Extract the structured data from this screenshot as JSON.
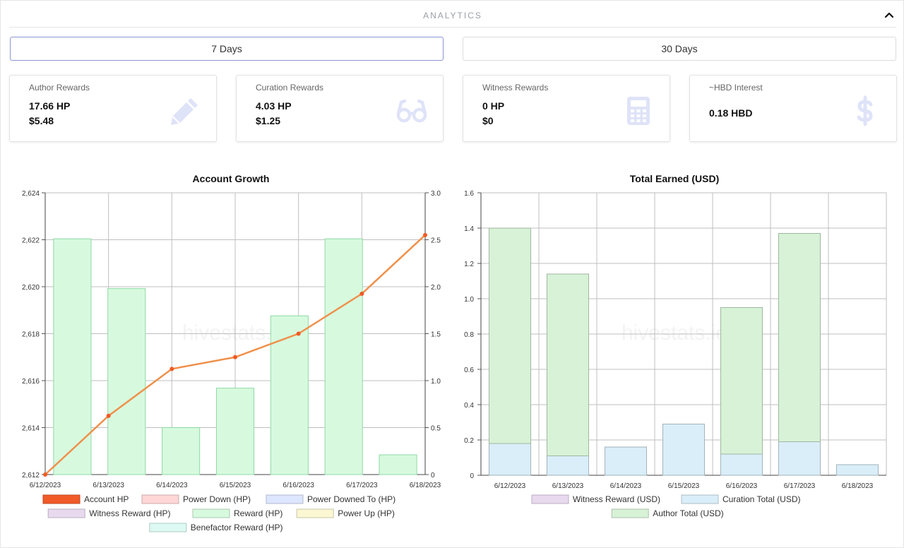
{
  "header": {
    "title": "ANALYTICS"
  },
  "range_tabs": [
    {
      "label": "7 Days",
      "active": true
    },
    {
      "label": "30 Days",
      "active": false
    }
  ],
  "cards": [
    {
      "title": "Author Rewards",
      "line1": "17.66 HP",
      "line2": "$5.48",
      "icon": "pencil-icon"
    },
    {
      "title": "Curation Rewards",
      "line1": "4.03 HP",
      "line2": "$1.25",
      "icon": "glasses-icon"
    },
    {
      "title": "Witness Rewards",
      "line1": "0 HP",
      "line2": "$0",
      "icon": "calculator-icon"
    },
    {
      "title": "~HBD Interest",
      "line1": "0.18 HBD",
      "icon": "dollar-icon"
    }
  ],
  "chart_data": [
    {
      "type": "bar",
      "title": "Account Growth",
      "watermark": "hivestats.io",
      "categories": [
        "6/12/2023",
        "6/13/2023",
        "6/14/2023",
        "6/15/2023",
        "6/16/2023",
        "6/17/2023",
        "6/18/2023"
      ],
      "y_left": {
        "min": 2612,
        "max": 2624,
        "ticks": [
          "2,612",
          "2,614",
          "2,616",
          "2,618",
          "2,620",
          "2,622",
          "2,624"
        ]
      },
      "y_right": {
        "min": 0,
        "max": 3.0,
        "ticks": [
          "0",
          "0.5",
          "1.0",
          "1.5",
          "2.0",
          "2.5",
          "3.0"
        ]
      },
      "account_hp": [
        2612.0,
        2614.5,
        2616.5,
        2617.0,
        2618.0,
        2619.7,
        2622.2
      ],
      "series": [
        {
          "name": "Account HP",
          "color": "#f15a29",
          "values": [
            2612.0,
            2614.5,
            2616.5,
            2617.0,
            2618.0,
            2619.7,
            2622.2
          ]
        },
        {
          "name": "Power Down (HP)",
          "color": "#ffd6d6",
          "values": [
            0,
            0,
            0,
            0,
            0,
            0,
            0
          ]
        },
        {
          "name": "Power Downed To (HP)",
          "color": "#dde6ff",
          "values": [
            0,
            0,
            0,
            0,
            0,
            0,
            0
          ]
        },
        {
          "name": "Witness Reward (HP)",
          "color": "#e8d9ef",
          "values": [
            0,
            0,
            0,
            0,
            0,
            0,
            0
          ]
        },
        {
          "name": "Reward (HP)",
          "color": "#d7fadf",
          "values": [
            2.51,
            1.98,
            0.5,
            0.92,
            1.69,
            2.51,
            0.21
          ]
        },
        {
          "name": "Power Up (HP)",
          "color": "#fbf7d2",
          "values": [
            0,
            0,
            0,
            0,
            0,
            0,
            0
          ]
        },
        {
          "name": "Benefactor Reward (HP)",
          "color": "#dcfaf3",
          "values": [
            0,
            0,
            0,
            0,
            0,
            0,
            0
          ]
        }
      ]
    },
    {
      "type": "bar",
      "title": "Total Earned (USD)",
      "watermark": "hivestats.io",
      "categories": [
        "6/12/2023",
        "6/13/2023",
        "6/14/2023",
        "6/15/2023",
        "6/16/2023",
        "6/17/2023",
        "6/18/2023"
      ],
      "y": {
        "min": 0,
        "max": 1.6,
        "ticks": [
          "0",
          "0.2",
          "0.4",
          "0.6",
          "0.8",
          "1.0",
          "1.2",
          "1.4",
          "1.6"
        ]
      },
      "series": [
        {
          "name": "Witness Reward (USD)",
          "color": "#e8d9ef",
          "values": [
            0,
            0,
            0,
            0,
            0,
            0,
            0
          ]
        },
        {
          "name": "Curation Total (USD)",
          "color": "#d9eef8",
          "values": [
            0.18,
            0.11,
            0.16,
            0.29,
            0.12,
            0.19,
            0.06
          ]
        },
        {
          "name": "Author Total (USD)",
          "color": "#d7f2d6",
          "values": [
            1.22,
            1.03,
            0,
            0,
            0.83,
            1.18,
            0
          ]
        }
      ]
    }
  ]
}
